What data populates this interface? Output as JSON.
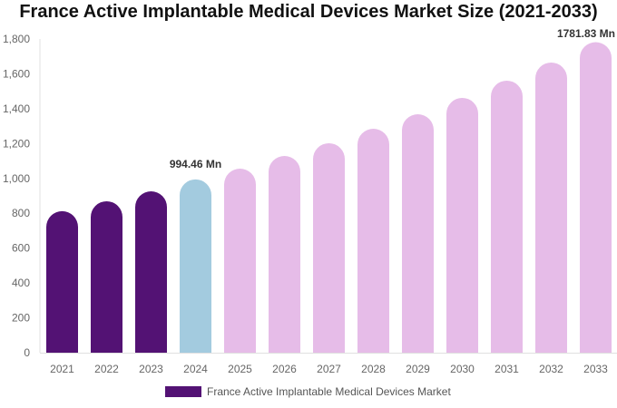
{
  "chart_data": {
    "type": "bar",
    "title": "France Active Implantable Medical Devices Market Size (2021-2033)",
    "categories": [
      "2021",
      "2022",
      "2023",
      "2024",
      "2025",
      "2026",
      "2027",
      "2028",
      "2029",
      "2030",
      "2031",
      "2032",
      "2033"
    ],
    "series": [
      {
        "name": "France Active Implantable Medical Devices Market",
        "values": [
          812,
          869,
          926,
          994.46,
          1056,
          1129,
          1202,
          1285,
          1368,
          1462,
          1561,
          1665,
          1781.83
        ]
      }
    ],
    "data_labels": [
      {
        "category": "2024",
        "text": "994.46 Mn"
      },
      {
        "category": "2033",
        "text": "1781.83 Mn"
      }
    ],
    "ylim": [
      0,
      1800
    ],
    "yticks": [
      "0",
      "200",
      "400",
      "600",
      "800",
      "1,000",
      "1,200",
      "1,400",
      "1,600",
      "1,800"
    ],
    "xlabel": "",
    "ylabel": "",
    "grid": false,
    "legend_position": "bottom",
    "colors": {
      "historical": "#531274",
      "current": "#a3cbdf",
      "forecast": "#e6bce8"
    }
  }
}
